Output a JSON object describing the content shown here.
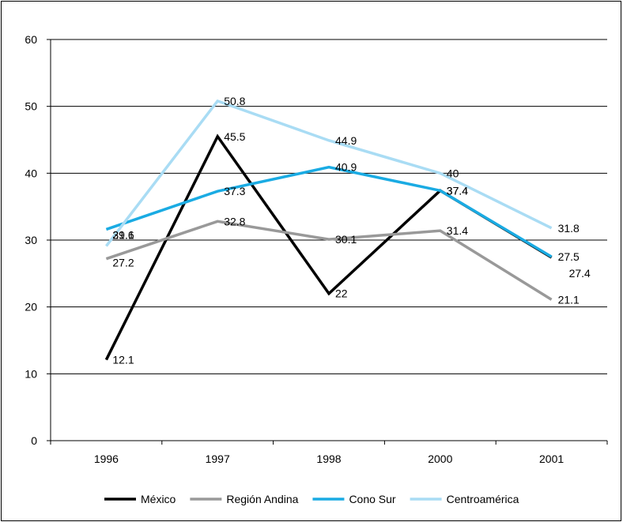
{
  "chart_data": {
    "type": "line",
    "categories": [
      "1996",
      "1997",
      "1998",
      "2000",
      "2001"
    ],
    "ylim": [
      0,
      60
    ],
    "yticks": [
      "0",
      "10",
      "20",
      "30",
      "40",
      "50",
      "60"
    ],
    "grid": "horizontal",
    "legend": "bottom",
    "series": [
      {
        "name": "México",
        "color": "#000000",
        "values": [
          12.1,
          45.5,
          22,
          37.4,
          27.4
        ],
        "labels": [
          "12.1",
          "45.5",
          "22",
          "37.4",
          "27.4"
        ]
      },
      {
        "name": "Región Andina",
        "color": "#999999",
        "values": [
          27.2,
          32.8,
          30.1,
          31.4,
          21.1
        ],
        "labels": [
          "27.2",
          "32.8",
          "30.1",
          "31.4",
          "21.1"
        ]
      },
      {
        "name": "Cono Sur",
        "color": "#1AABE3",
        "values": [
          31.6,
          37.3,
          40.9,
          37.4,
          27.5
        ],
        "labels": [
          "31.6",
          "37.3",
          "40.9",
          "37.4",
          "27.5"
        ]
      },
      {
        "name": "Centroamérica",
        "color": "#A9DCF4",
        "values": [
          29.1,
          50.8,
          44.9,
          40,
          31.8
        ],
        "labels": [
          "29.1",
          "50.8",
          "44.9",
          "40",
          "31.8"
        ]
      }
    ]
  }
}
